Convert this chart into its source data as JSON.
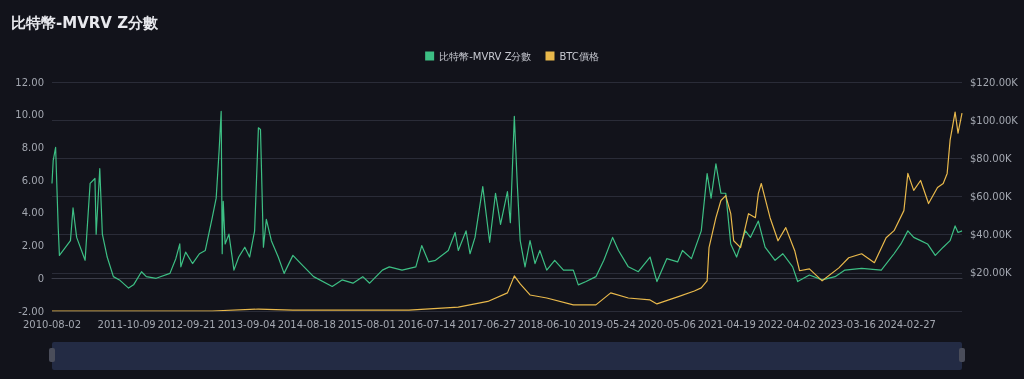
{
  "chart_data": {
    "type": "line",
    "title": "比特幣-MVRV Z分數",
    "xlim": [
      "2010-08-02",
      "2025-01-12"
    ],
    "xticks": [
      "2010-08-02",
      "2011-10-09",
      "2012-09-21",
      "2013-09-04",
      "2014-08-18",
      "2015-08-01",
      "2016-07-14",
      "2017-06-27",
      "2018-06-10",
      "2019-05-24",
      "2020-05-06",
      "2021-04-19",
      "2022-04-02",
      "2023-03-16",
      "2024-02-27"
    ],
    "ylim": [
      -2,
      12
    ],
    "yticks": [
      {
        "value": -2,
        "label": "-2.00"
      },
      0,
      {
        "value": 2,
        "label": "2.00"
      },
      {
        "value": 4,
        "label": "4.00"
      },
      {
        "value": 6,
        "label": "6.00"
      },
      {
        "value": 8,
        "label": "8.00"
      },
      {
        "value": 10,
        "label": "10.00"
      },
      {
        "value": 12,
        "label": "12.00"
      }
    ],
    "y2lim": [
      0,
      120000
    ],
    "y2ticks": [
      {
        "value": 0,
        "label": null
      },
      {
        "value": 20000,
        "label": "$20.00K"
      },
      {
        "value": 40000,
        "label": "$40.00K"
      },
      {
        "value": 60000,
        "label": "$60.00K"
      },
      {
        "value": 80000,
        "label": "$80.00K"
      },
      {
        "value": 100000,
        "label": "$100.00K"
      },
      {
        "value": 120000,
        "label": "$120.00K"
      }
    ],
    "grid": "y",
    "legend": "top",
    "marker": "none",
    "line_style": "solid",
    "series": [
      {
        "name": "比特幣-MVRV Z分數",
        "color": "#3dbf84",
        "x": [
          "2010-08-02",
          "2010-08-09",
          "2010-08-23",
          "2010-09-07",
          "2010-09-14",
          "2010-10-20",
          "2010-11-17",
          "2010-12-02",
          "2010-12-23",
          "2011-02-10",
          "2011-03-11",
          "2011-04-08",
          "2011-04-15",
          "2011-05-06",
          "2011-05-21",
          "2011-06-18",
          "2011-07-24",
          "2011-08-28",
          "2011-10-20",
          "2011-11-18",
          "2012-01-03",
          "2012-01-31",
          "2012-03-28",
          "2012-06-16",
          "2012-07-20",
          "2012-08-12",
          "2012-08-18",
          "2012-09-15",
          "2012-10-25",
          "2012-12-04",
          "2013-01-07",
          "2013-02-16",
          "2013-03-11",
          "2013-03-28",
          "2013-04-09",
          "2013-04-15",
          "2013-04-21",
          "2013-05-02",
          "2013-05-24",
          "2013-06-22",
          "2013-07-20",
          "2013-08-24",
          "2013-09-21",
          "2013-10-20",
          "2013-11-11",
          "2013-11-23",
          "2013-12-10",
          "2013-12-27",
          "2014-01-25",
          "2014-03-06",
          "2014-04-09",
          "2014-05-30",
          "2014-07-15",
          "2014-09-27",
          "2015-01-13",
          "2015-03-11",
          "2015-05-13",
          "2015-07-09",
          "2015-08-18",
          "2015-10-31",
          "2015-12-10",
          "2016-02-22",
          "2016-05-12",
          "2016-06-15",
          "2016-07-25",
          "2016-09-03",
          "2016-11-16",
          "2016-12-26",
          "2017-01-13",
          "2017-02-27",
          "2017-03-22",
          "2017-04-20",
          "2017-06-04",
          "2017-07-14",
          "2017-08-17",
          "2017-09-15",
          "2017-10-25",
          "2017-11-11",
          "2017-12-04",
          "2017-12-21",
          "2018-01-07",
          "2018-02-04",
          "2018-03-05",
          "2018-04-03",
          "2018-05-01",
          "2018-06-10",
          "2018-07-26",
          "2018-09-15",
          "2018-11-11",
          "2018-12-10",
          "2019-01-24",
          "2019-03-22",
          "2019-05-07",
          "2019-06-27",
          "2019-07-31",
          "2019-09-26",
          "2019-11-23",
          "2020-01-30",
          "2020-03-10",
          "2020-05-06",
          "2020-07-08",
          "2020-08-05",
          "2020-09-26",
          "2020-11-22",
          "2020-12-26",
          "2021-01-18",
          "2021-02-15",
          "2021-03-16",
          "2021-04-13",
          "2021-05-12",
          "2021-06-15",
          "2021-08-05",
          "2021-09-03",
          "2021-10-19",
          "2021-11-27",
          "2022-01-24",
          "2022-03-10",
          "2022-05-06",
          "2022-06-04",
          "2022-08-11",
          "2022-10-24",
          "2023-01-07",
          "2023-03-05",
          "2023-06-10",
          "2023-10-02",
          "2023-12-15",
          "2024-01-24",
          "2024-03-04",
          "2024-04-07",
          "2024-05-17",
          "2024-06-26",
          "2024-08-10",
          "2024-09-25",
          "2024-11-04",
          "2024-12-03",
          "2024-12-20",
          "2025-01-12"
        ],
        "values": [
          5.8,
          7.2,
          8.0,
          3.1,
          1.4,
          1.9,
          2.3,
          4.3,
          2.5,
          1.1,
          5.8,
          6.1,
          2.7,
          6.7,
          2.7,
          1.3,
          0.1,
          -0.1,
          -0.6,
          -0.4,
          0.4,
          0.1,
          0,
          0.3,
          1.2,
          2.1,
          0.7,
          1.6,
          0.9,
          1.5,
          1.7,
          3.7,
          4.9,
          7.8,
          10.2,
          1.5,
          4.7,
          2.1,
          2.7,
          0.5,
          1.3,
          1.9,
          1.3,
          2.9,
          9.2,
          9.1,
          1.9,
          3.6,
          2.3,
          1.3,
          0.3,
          1.4,
          0.9,
          0.1,
          -0.5,
          -0.1,
          -0.3,
          0.1,
          -0.3,
          0.5,
          0.7,
          0.5,
          0.7,
          2.0,
          1.0,
          1.1,
          1.7,
          2.8,
          1.7,
          2.9,
          1.5,
          2.5,
          5.6,
          2.2,
          5.2,
          3.3,
          5.3,
          3.4,
          9.9,
          5.8,
          2.3,
          0.7,
          2.3,
          0.9,
          1.7,
          0.5,
          1.1,
          0.5,
          0.5,
          -0.4,
          -0.2,
          0.1,
          1.1,
          2.5,
          1.7,
          0.7,
          0.4,
          1.3,
          -0.2,
          1.2,
          1.0,
          1.7,
          1.2,
          2.9,
          6.4,
          4.9,
          7.0,
          5.2,
          5.2,
          2.1,
          1.3,
          2.9,
          2.5,
          3.5,
          1.9,
          1.1,
          1.5,
          0.7,
          -0.2,
          0.2,
          -0.1,
          0.1,
          0.5,
          0.6,
          0.5,
          1.5,
          2.1,
          2.9,
          2.5,
          2.3,
          2.1,
          1.4,
          1.9,
          2.3,
          3.2,
          2.8,
          2.9
        ]
      },
      {
        "name": "BTC價格",
        "color": "#e8b84b",
        "axis": "y2",
        "x": [
          "2010-08-02",
          "2013-02-16",
          "2013-11-11",
          "2014-05-30",
          "2016-04-02",
          "2017-01-13",
          "2017-07-03",
          "2017-10-25",
          "2017-12-04",
          "2018-01-07",
          "2018-03-05",
          "2018-06-10",
          "2018-11-11",
          "2019-03-22",
          "2019-06-16",
          "2019-09-26",
          "2020-01-30",
          "2020-03-10",
          "2020-07-08",
          "2020-10-13",
          "2020-11-22",
          "2020-12-26",
          "2021-01-06",
          "2021-02-15",
          "2021-03-16",
          "2021-04-13",
          "2021-05-12",
          "2021-05-29",
          "2021-07-08",
          "2021-08-23",
          "2021-10-02",
          "2021-10-19",
          "2021-11-05",
          "2021-12-26",
          "2022-02-10",
          "2022-03-27",
          "2022-05-18",
          "2022-06-15",
          "2022-08-11",
          "2022-10-24",
          "2023-01-29",
          "2023-03-27",
          "2023-06-10",
          "2023-08-23",
          "2023-10-30",
          "2023-12-15",
          "2024-02-10",
          "2024-03-04",
          "2024-04-07",
          "2024-05-17",
          "2024-07-02",
          "2024-08-23",
          "2024-09-25",
          "2024-10-18",
          "2024-11-04",
          "2024-12-03",
          "2024-12-20",
          "2025-01-12"
        ],
        "values": [
          0,
          0,
          1000,
          500,
          500,
          2000,
          5000,
          9500,
          18400,
          14200,
          8400,
          6800,
          3200,
          3200,
          9500,
          6800,
          5800,
          3700,
          7400,
          10500,
          12100,
          15800,
          33200,
          48900,
          57900,
          60500,
          51000,
          36800,
          33200,
          51000,
          48900,
          61600,
          66800,
          48900,
          36800,
          43700,
          31600,
          21100,
          22100,
          15800,
          22600,
          27900,
          30000,
          25300,
          38400,
          42100,
          52600,
          72100,
          63200,
          68400,
          56300,
          64700,
          66800,
          72100,
          89500,
          104200,
          93200,
          103700
        ]
      }
    ]
  }
}
